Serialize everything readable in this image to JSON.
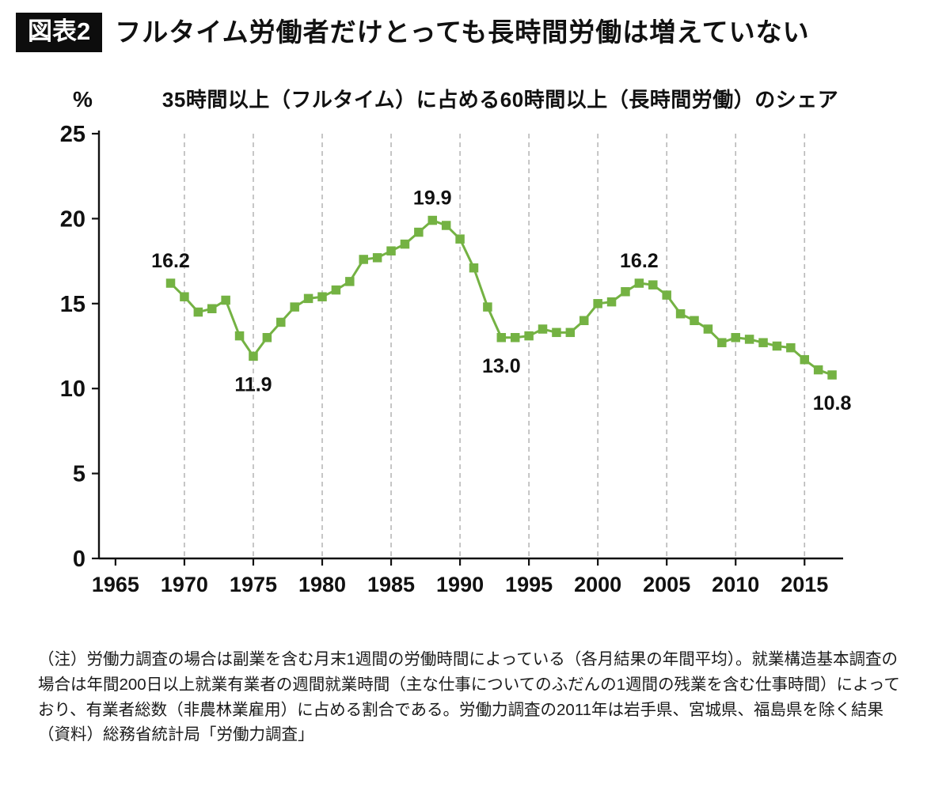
{
  "header": {
    "label": "図表2",
    "title": "フルタイム労働者だけとっても長時間労働は増えていない"
  },
  "chart": {
    "unit_label": "%",
    "subtitle": "35時間以上（フルタイム）に占める60時間以上（長時間労働）のシェア"
  },
  "chart_data": {
    "type": "line",
    "title": "35時間以上（フルタイム）に占める60時間以上（長時間労働）のシェア",
    "ylabel": "%",
    "xlabel": "",
    "x": [
      1969,
      1970,
      1971,
      1972,
      1973,
      1974,
      1975,
      1976,
      1977,
      1978,
      1979,
      1980,
      1981,
      1982,
      1983,
      1984,
      1985,
      1986,
      1987,
      1988,
      1989,
      1990,
      1991,
      1992,
      1993,
      1994,
      1995,
      1996,
      1997,
      1998,
      1999,
      2000,
      2001,
      2002,
      2003,
      2004,
      2005,
      2006,
      2007,
      2008,
      2009,
      2010,
      2011,
      2012,
      2013,
      2014,
      2015,
      2016,
      2017
    ],
    "values": [
      16.2,
      15.4,
      14.5,
      14.7,
      15.2,
      13.1,
      11.9,
      13.0,
      13.9,
      14.8,
      15.3,
      15.4,
      15.8,
      16.3,
      17.6,
      17.7,
      18.1,
      18.5,
      19.2,
      19.9,
      19.6,
      18.8,
      17.1,
      14.8,
      13.0,
      13.0,
      13.1,
      13.5,
      13.3,
      13.3,
      14.0,
      15.0,
      15.1,
      15.7,
      16.2,
      16.1,
      15.5,
      14.4,
      14.0,
      13.5,
      12.7,
      13.0,
      12.9,
      12.7,
      12.5,
      12.4,
      11.7,
      11.1,
      10.8
    ],
    "xlim": [
      1963.8,
      2017.8
    ],
    "ylim": [
      0,
      25
    ],
    "x_ticks": [
      1965,
      1970,
      1975,
      1980,
      1985,
      1990,
      1995,
      2000,
      2005,
      2010,
      2015
    ],
    "y_ticks": [
      0,
      5,
      10,
      15,
      20,
      25
    ],
    "grid": "vertical-dashed",
    "legend": "none",
    "line_color": "#74b243",
    "marker": "square",
    "annotations": [
      {
        "x": 1969,
        "y": 16.2,
        "text": "16.2",
        "position": "above"
      },
      {
        "x": 1975,
        "y": 11.9,
        "text": "11.9",
        "position": "below"
      },
      {
        "x": 1988,
        "y": 19.9,
        "text": "19.9",
        "position": "above"
      },
      {
        "x": 1993,
        "y": 13.0,
        "text": "13.0",
        "position": "below"
      },
      {
        "x": 2003,
        "y": 16.2,
        "text": "16.2",
        "position": "above"
      },
      {
        "x": 2017,
        "y": 10.8,
        "text": "10.8",
        "position": "below"
      }
    ]
  },
  "notes": {
    "note": "（注）労働力調査の場合は副業を含む月末1週間の労働時間によっている（各月結果の年間平均）。就業構造基本調査の場合は年間200日以上就業有業者の週間就業時間（主な仕事についてのふだんの1週間の残業を含む仕事時間）によっており、有業者総数（非農林業雇用）に占める割合である。労働力調査の2011年は岩手県、宮城県、福島県を除く結果",
    "source": "（資料）総務省統計局「労働力調査」"
  }
}
